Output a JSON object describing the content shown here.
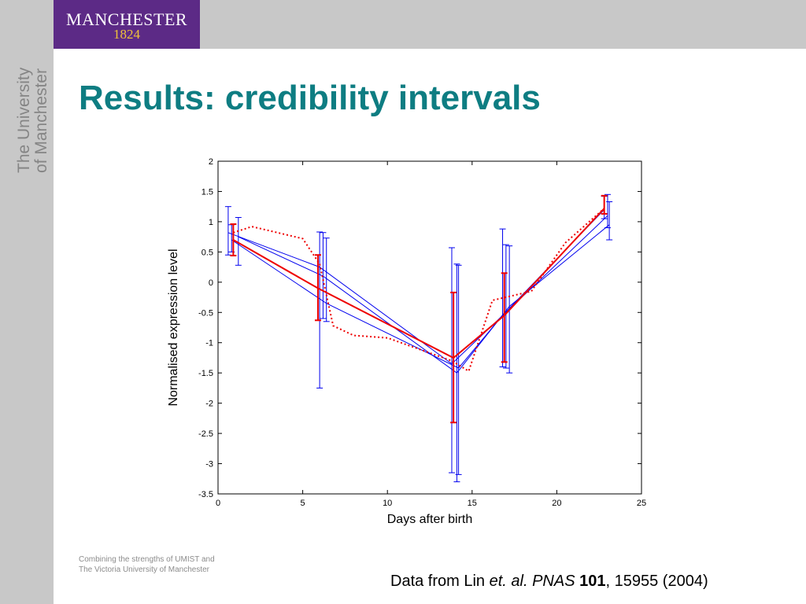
{
  "branding": {
    "logo_name": "MANCHESTER",
    "logo_year": "1824",
    "vertical_line1": "The University",
    "vertical_line2": "of Manchester",
    "colors": {
      "purple": "#5c2a86",
      "gold": "#f0c23a",
      "teal": "#0e7d82",
      "grey": "#c8c8c8"
    }
  },
  "slide": {
    "title": "Results: credibility intervals",
    "tagline_line1": "Combining the strengths of UMIST and",
    "tagline_line2": "The Victoria University of Manchester",
    "citation": {
      "prefix": "Data from Lin ",
      "authors": "et. al.",
      "journal": "PNAS",
      "volume": "101",
      "rest": ", 15955 (2004)"
    }
  },
  "chart_data": {
    "type": "line",
    "xlabel": "Days after birth",
    "ylabel": "Normalised expression level",
    "xlim": [
      0,
      25
    ],
    "ylim": [
      -3.5,
      2
    ],
    "xticks": [
      0,
      5,
      10,
      15,
      20,
      25
    ],
    "yticks": [
      2,
      1.5,
      1,
      0.5,
      0,
      -0.5,
      -1,
      -1.5,
      -2,
      -2.5,
      -3,
      -3.5
    ],
    "grid": false,
    "series": [
      {
        "color": "#0000ee",
        "style": "solid",
        "width": 1,
        "x": [
          0.6,
          6.0,
          13.8,
          23.0
        ],
        "y": [
          0.82,
          0.25,
          -1.35,
          1.1
        ],
        "err_low": [
          0.45,
          -1.75,
          -3.15,
          0.9
        ],
        "err_high": [
          1.25,
          0.83,
          0.57,
          1.45
        ]
      },
      {
        "color": "#0000ee",
        "style": "solid",
        "width": 1,
        "x": [
          1.2,
          6.2,
          14.1,
          17.2,
          23.1
        ],
        "y": [
          0.75,
          0.1,
          -1.5,
          -0.4,
          0.95
        ],
        "err_low": [
          0.28,
          -0.6,
          -3.3,
          -1.5,
          0.7
        ],
        "err_high": [
          1.07,
          0.82,
          0.3,
          0.6,
          1.33
        ]
      },
      {
        "color": "#0000ee",
        "style": "solid",
        "width": 1,
        "x": [
          0.8,
          6.4,
          14.2,
          16.8,
          22.8
        ],
        "y": [
          0.7,
          -0.35,
          -1.42,
          -0.55,
          1.2
        ],
        "err_low": [
          0.5,
          -0.65,
          -3.18,
          -1.4,
          1.05
        ],
        "err_high": [
          0.95,
          0.73,
          0.28,
          0.88,
          1.42
        ]
      },
      {
        "color": "#0000ee",
        "style": "solid",
        "width": 1,
        "x": [
          17.0
        ],
        "y": [
          -0.5
        ],
        "err_low": [
          -1.42
        ],
        "err_high": [
          0.62
        ]
      },
      {
        "color": "#ee0000",
        "style": "solid",
        "width": 2,
        "x": [
          0.9,
          5.9,
          13.9,
          16.9,
          22.8
        ],
        "y": [
          0.7,
          -0.1,
          -1.25,
          -0.55,
          1.22
        ],
        "err_low": [
          0.44,
          -0.63,
          -2.32,
          -1.32,
          1.13
        ],
        "err_high": [
          0.96,
          0.45,
          -0.17,
          0.15,
          1.43
        ]
      },
      {
        "color": "#ee0000",
        "style": "dotted",
        "width": 2,
        "x": [
          0.9,
          2.0,
          5.0,
          6.0,
          6.8,
          8.0,
          10.0,
          13.8,
          14.8,
          16.2,
          18.5,
          20.5,
          22.8
        ],
        "y": [
          0.82,
          0.92,
          0.72,
          0.3,
          -0.72,
          -0.88,
          -0.92,
          -1.3,
          -1.47,
          -0.3,
          -0.15,
          0.65,
          1.22
        ],
        "err_low": [],
        "err_high": []
      }
    ]
  }
}
